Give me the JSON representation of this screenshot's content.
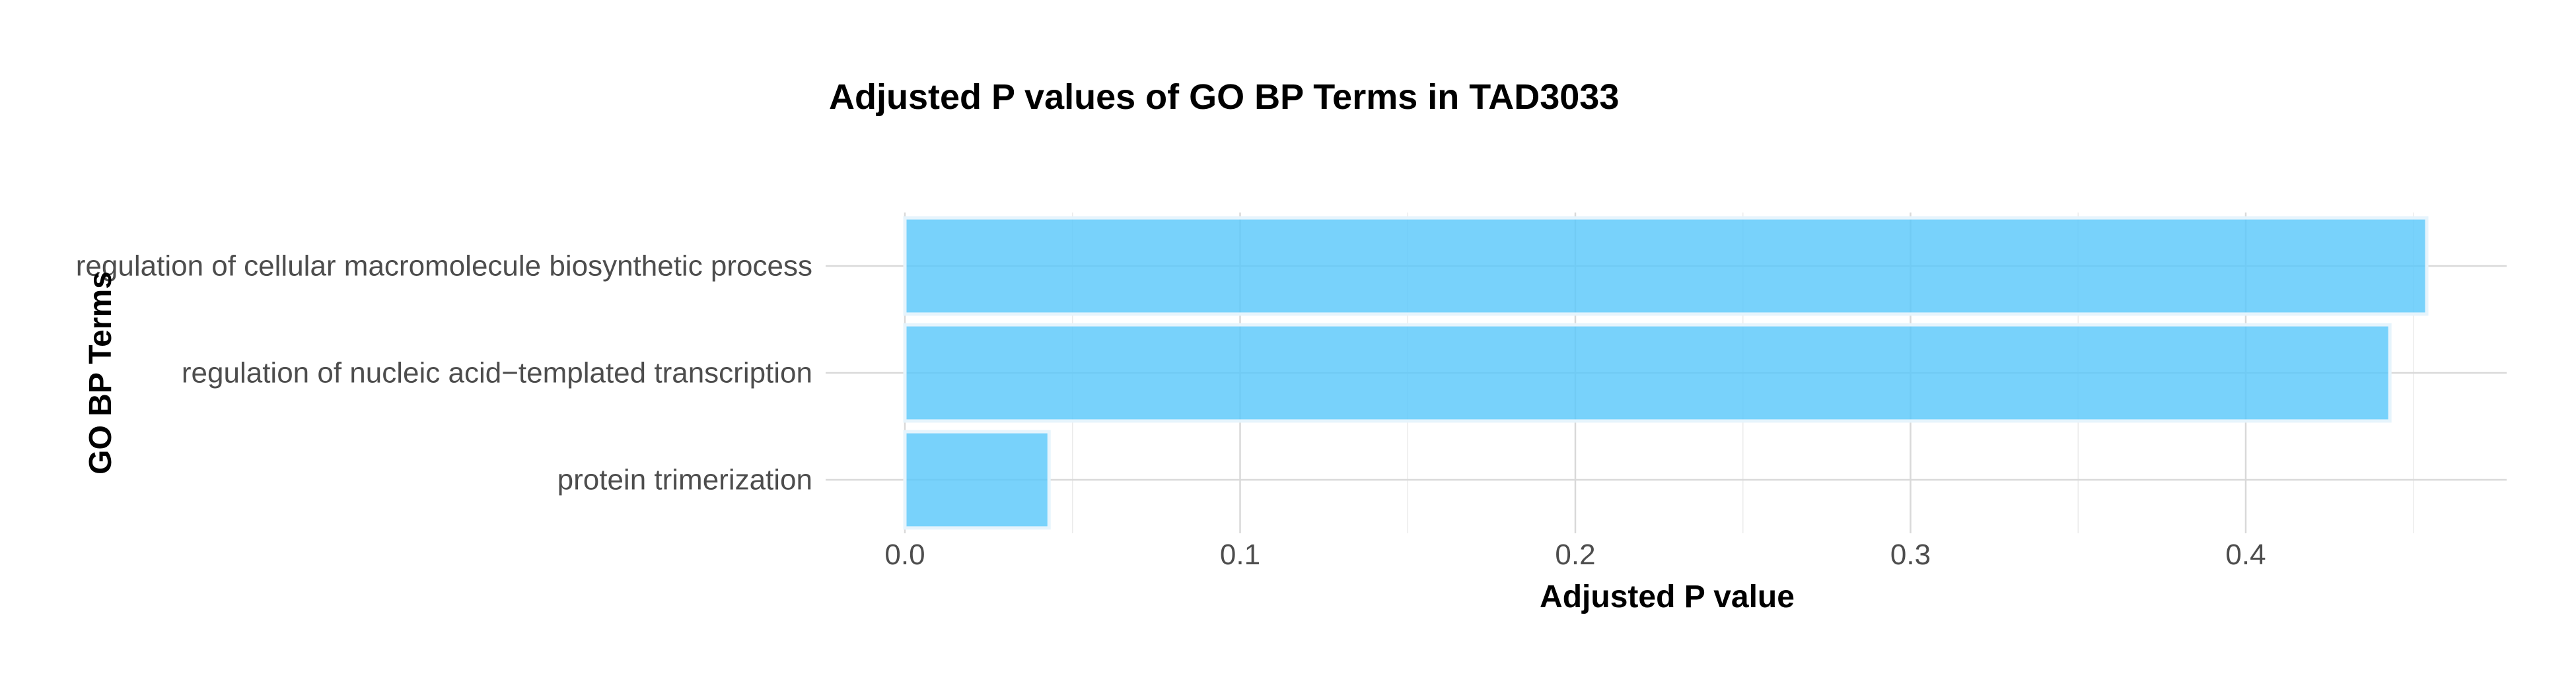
{
  "chart_data": {
    "type": "bar",
    "orientation": "horizontal",
    "title": "Adjusted P values of GO BP Terms in TAD3033",
    "xlabel": "Adjusted P value",
    "ylabel": "GO BP Terms",
    "categories": [
      "regulation of cellular macromolecule biosynthetic process",
      "regulation of nucleic acid−templated transcription",
      "protein trimerization"
    ],
    "values": [
      0.454,
      0.443,
      0.043
    ],
    "xlim": [
      0,
      0.475
    ],
    "xticks": [
      0.0,
      0.1,
      0.2,
      0.3,
      0.4
    ],
    "xtick_labels": [
      "0.0",
      "0.1",
      "0.2",
      "0.3",
      "0.4"
    ],
    "grid": true,
    "legend": "none",
    "bar_fill": "#5ac8fa",
    "bar_stroke": "#e6f4fc"
  }
}
